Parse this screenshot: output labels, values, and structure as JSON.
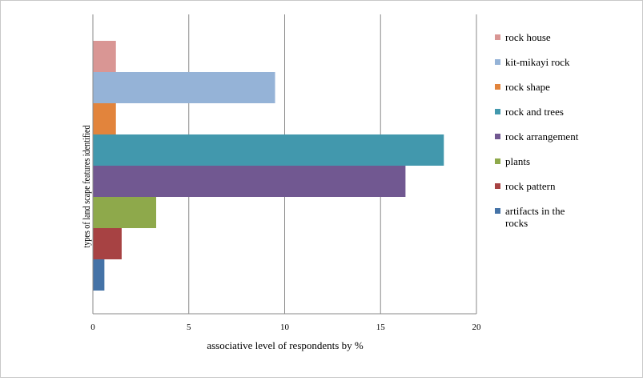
{
  "chart_data": {
    "type": "bar",
    "orientation": "horizontal",
    "title": "",
    "xlabel": "associative level of respondents by %",
    "ylabel": "types of land scape features identified",
    "xlim": [
      0,
      20
    ],
    "xticks": [
      "0",
      "5",
      "10",
      "15",
      "20"
    ],
    "grid": "vertical",
    "legend_position": "right",
    "series": [
      {
        "name": "rock house",
        "value": 1.2,
        "color": "#d99694"
      },
      {
        "name": "kit-mikayi rock",
        "value": 9.5,
        "color": "#95b3d7"
      },
      {
        "name": "rock shape",
        "value": 1.2,
        "color": "#e2843c"
      },
      {
        "name": "rock and trees",
        "value": 18.3,
        "color": "#4298ad"
      },
      {
        "name": "rock arrangement",
        "value": 16.3,
        "color": "#715891"
      },
      {
        "name": "plants",
        "value": 3.3,
        "color": "#8ea94b"
      },
      {
        "name": "rock pattern",
        "value": 1.5,
        "color": "#a74243"
      },
      {
        "name": "artifacts in the rocks",
        "value": 0.6,
        "color": "#4573a7"
      }
    ]
  }
}
